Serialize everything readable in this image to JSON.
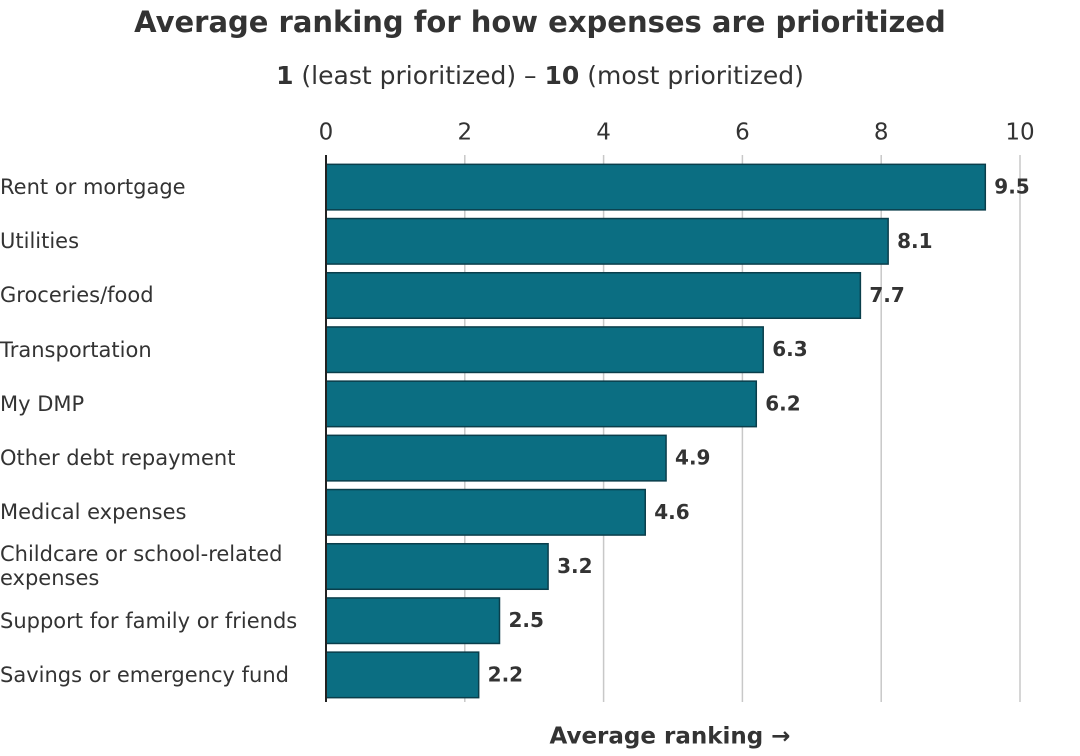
{
  "chart_data": {
    "type": "barh",
    "title": "Average ranking for how expenses are prioritized",
    "subtitle": [
      {
        "text": "1",
        "bold": true
      },
      {
        "text": " (least prioritized) – ",
        "bold": false
      },
      {
        "text": "10",
        "bold": true
      },
      {
        "text": " (most prioritized)",
        "bold": false
      }
    ],
    "x_label": "Average ranking →",
    "categories": [
      "Rent or mortgage",
      "Utilities",
      "Groceries/food",
      "Transportation",
      "My DMP",
      "Other debt repayment",
      "Medical expenses",
      "Childcare or school-related expenses",
      "Support for family or friends",
      "Savings or emergency fund"
    ],
    "values": [
      9.5,
      8.1,
      7.7,
      6.3,
      6.2,
      4.9,
      4.6,
      3.2,
      2.5,
      2.2
    ],
    "color": "#0b6e82",
    "xlim": [
      0,
      10
    ],
    "xticks": [
      0,
      2,
      4,
      6,
      8,
      10
    ],
    "grid": true
  }
}
